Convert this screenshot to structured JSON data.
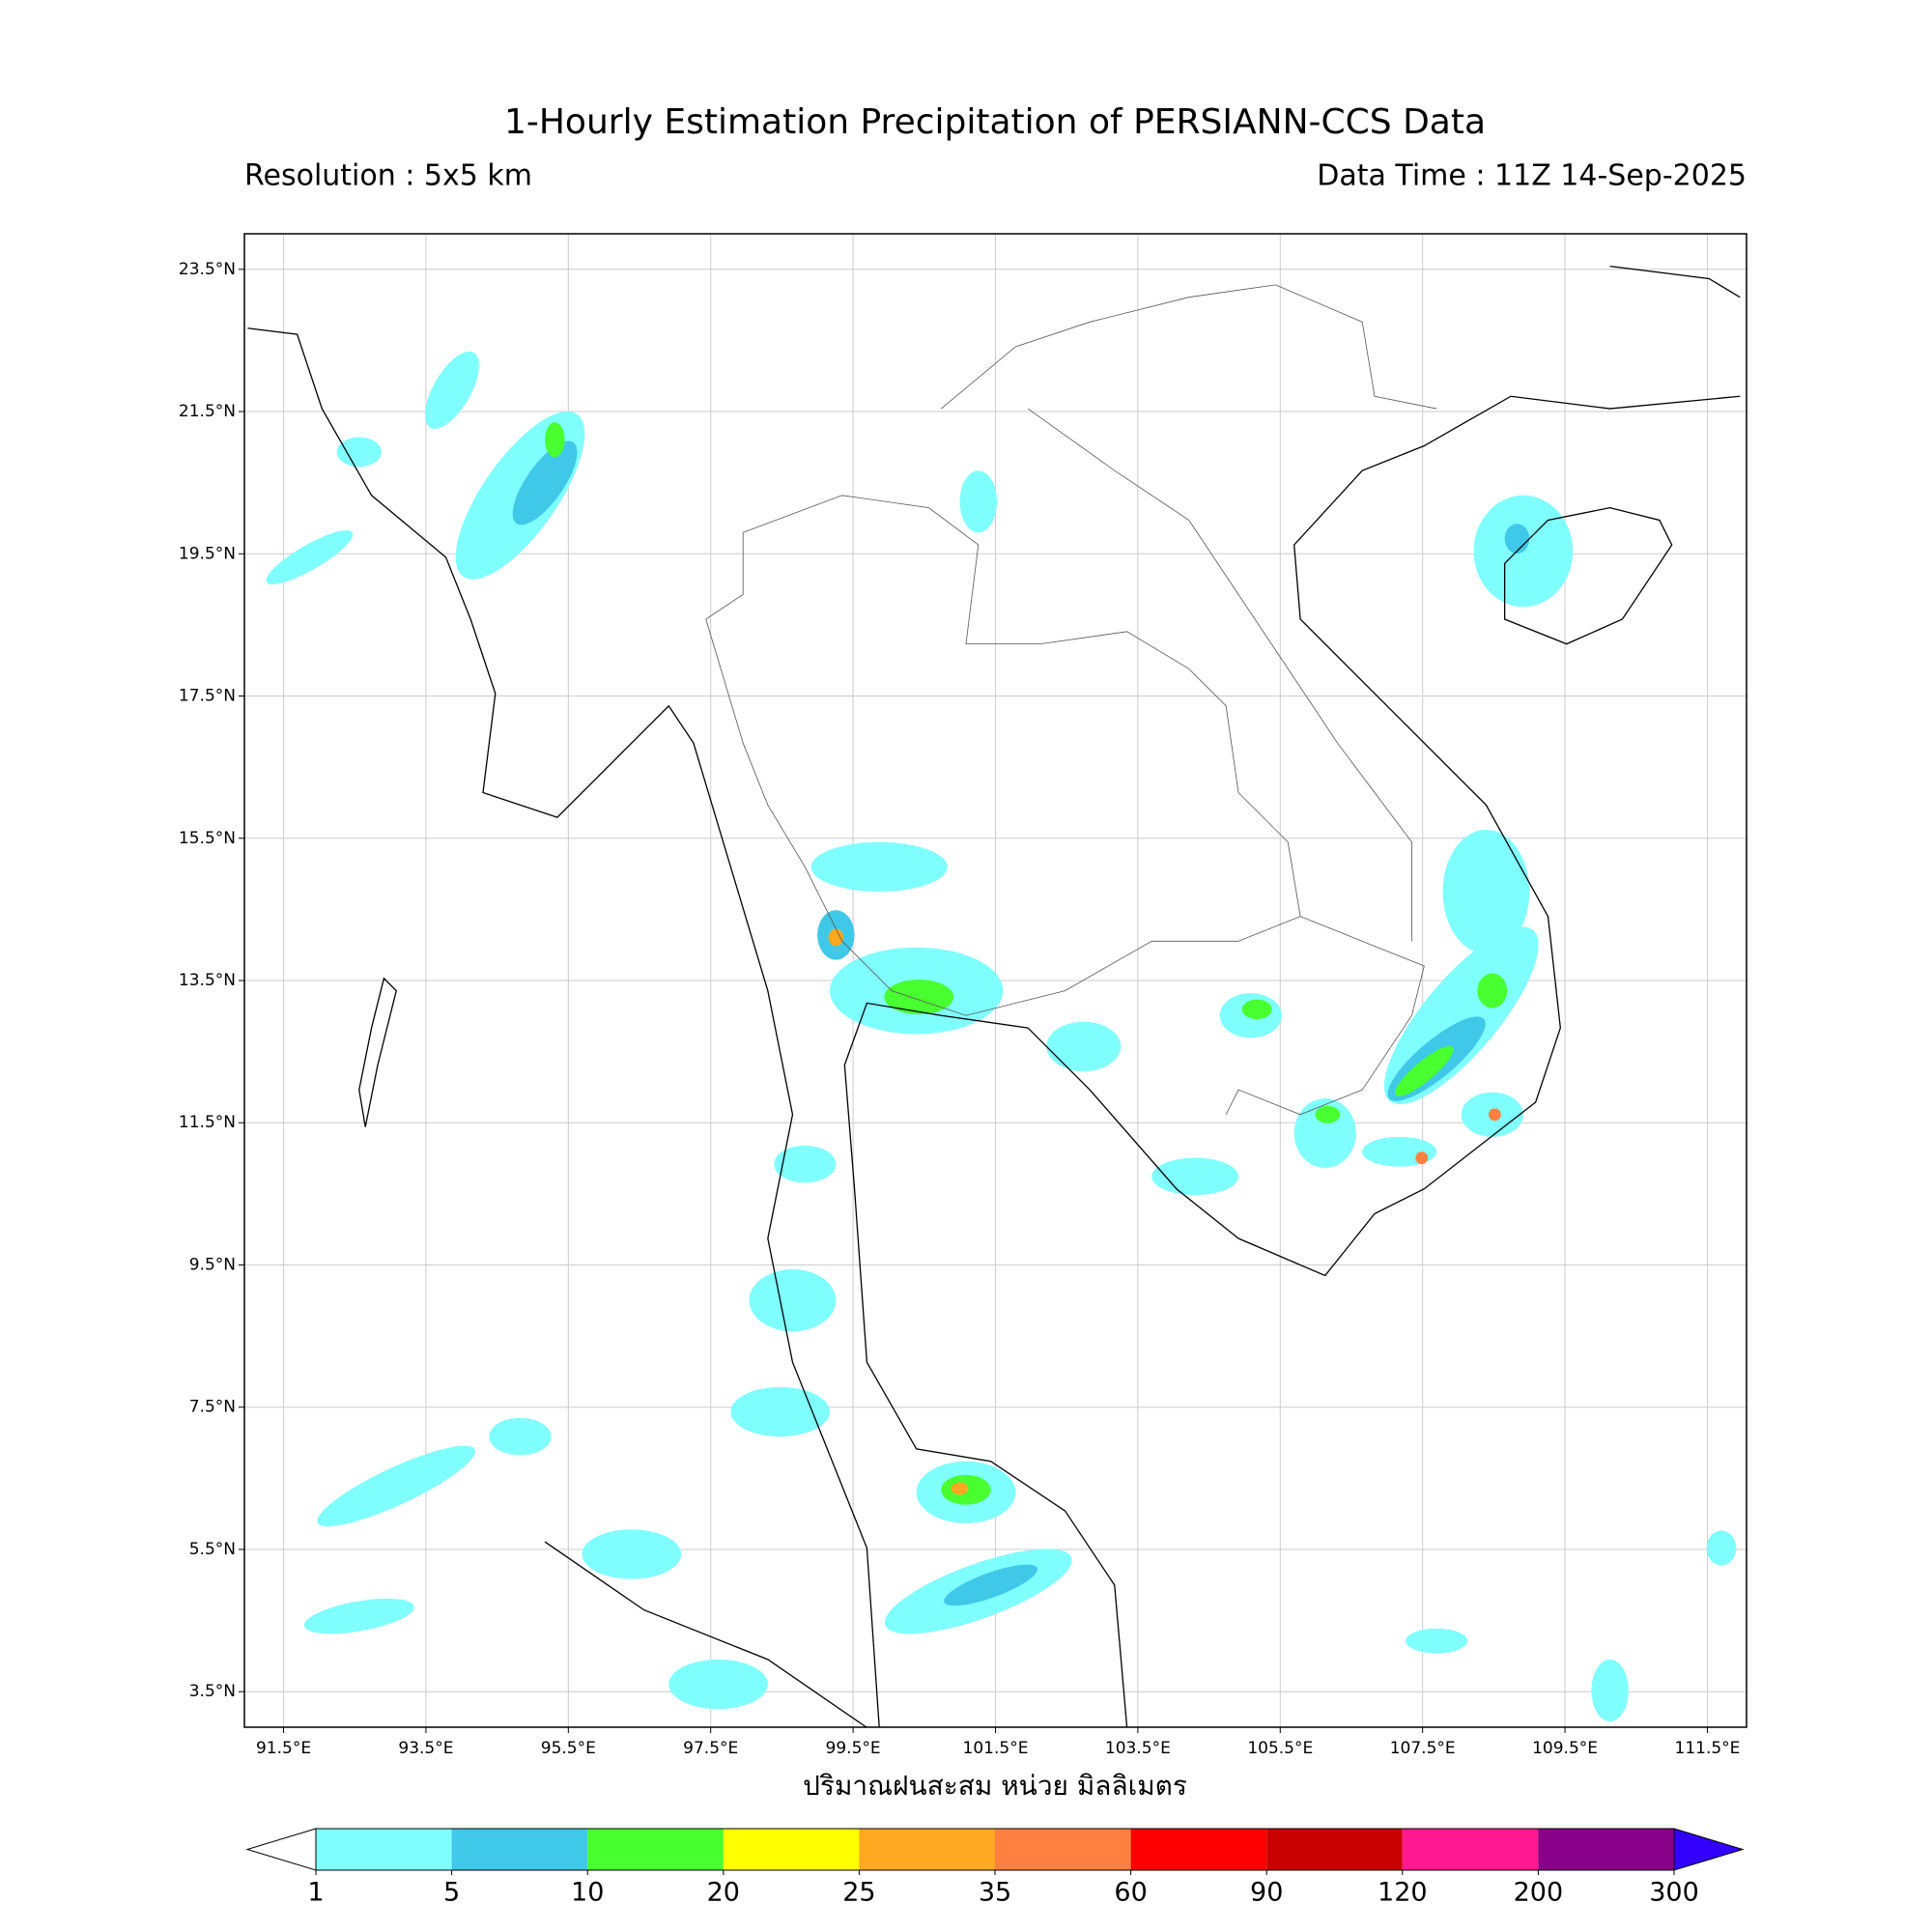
{
  "title": "1-Hourly Estimation Precipitation of PERSIANN-CCS Data",
  "resolution": "Resolution : 5x5 km",
  "data_time": "Data Time : 11Z 14-Sep-2025",
  "map": {
    "xlim": [
      90.95,
      112.05
    ],
    "ylim": [
      3.0,
      24.0
    ],
    "grid": true,
    "xticks": [
      {
        "value": 91.5,
        "label": "91.5°E"
      },
      {
        "value": 93.5,
        "label": "93.5°E"
      },
      {
        "value": 95.5,
        "label": "95.5°E"
      },
      {
        "value": 97.5,
        "label": "97.5°E"
      },
      {
        "value": 99.5,
        "label": "99.5°E"
      },
      {
        "value": 101.5,
        "label": "101.5°E"
      },
      {
        "value": 103.5,
        "label": "103.5°E"
      },
      {
        "value": 105.5,
        "label": "105.5°E"
      },
      {
        "value": 107.5,
        "label": "107.5°E"
      },
      {
        "value": 109.5,
        "label": "109.5°E"
      },
      {
        "value": 111.5,
        "label": "111.5°E"
      }
    ],
    "yticks": [
      {
        "value": 3.5,
        "label": "3.5°N"
      },
      {
        "value": 5.5,
        "label": "5.5°N"
      },
      {
        "value": 7.5,
        "label": "7.5°N"
      },
      {
        "value": 9.5,
        "label": "9.5°N"
      },
      {
        "value": 11.5,
        "label": "11.5°N"
      },
      {
        "value": 13.5,
        "label": "13.5°N"
      },
      {
        "value": 15.5,
        "label": "15.5°N"
      },
      {
        "value": 17.5,
        "label": "17.5°N"
      },
      {
        "value": 19.5,
        "label": "19.5°N"
      },
      {
        "value": 21.5,
        "label": "21.5°N"
      },
      {
        "value": 23.5,
        "label": "23.5°N"
      }
    ]
  },
  "colorbar": {
    "label": "ปริมาณฝนสะสม หน่วย มิลลิเมตร",
    "levels": [
      1,
      5,
      10,
      20,
      25,
      35,
      60,
      90,
      120,
      200,
      300
    ],
    "colors": [
      "#80ffff",
      "#40c8e8",
      "#48ff30",
      "#ffff00",
      "#ffa820",
      "#ff8040",
      "#ff0000",
      "#c80000",
      "#ff1890",
      "#880088"
    ],
    "under_color": "#ffffff",
    "over_color": "#3300ff"
  }
}
